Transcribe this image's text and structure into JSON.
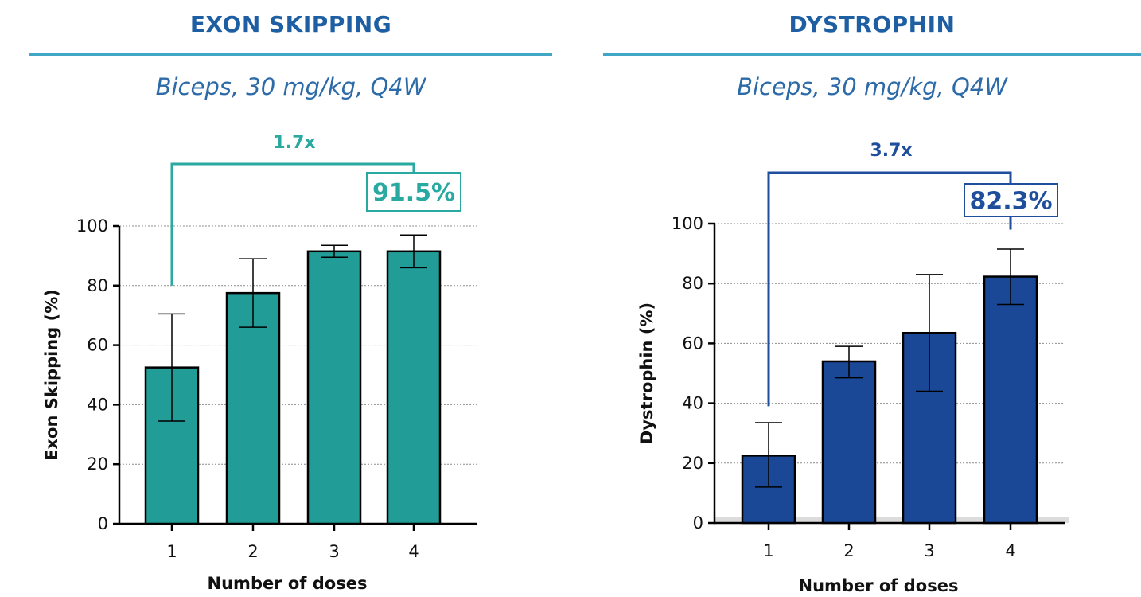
{
  "chart_data": [
    {
      "type": "bar",
      "title": "EXON SKIPPING",
      "subtitle": "Biceps, 30 mg/kg, Q4W",
      "xlabel": "Number of doses",
      "ylabel": "Exon Skipping (%)",
      "categories": [
        "1",
        "2",
        "3",
        "4"
      ],
      "values": [
        52.5,
        77.5,
        91.5,
        91.5
      ],
      "error": [
        [
          34.5,
          70.5
        ],
        [
          66.0,
          89.0
        ],
        [
          89.5,
          93.5
        ],
        [
          86.0,
          97.0
        ]
      ],
      "ylim": [
        0,
        100
      ],
      "yticks": [
        0,
        20,
        40,
        60,
        80,
        100
      ],
      "grid": true,
      "fold_change_label": "1.7x",
      "highlight_label": "91.5%",
      "bar_color": "#219c96",
      "accent_color": "#2aa9a1",
      "title_color": "#1e5fa4"
    },
    {
      "type": "bar",
      "title": "DYSTROPHIN",
      "subtitle": "Biceps, 30 mg/kg, Q4W",
      "xlabel": "Number of doses",
      "ylabel": "Dystrophin (%)",
      "categories": [
        "1",
        "2",
        "3",
        "4"
      ],
      "values": [
        22.5,
        54.0,
        63.5,
        82.3
      ],
      "error": [
        [
          12.0,
          33.5
        ],
        [
          48.5,
          59.0
        ],
        [
          44.0,
          83.0
        ],
        [
          73.0,
          91.5
        ]
      ],
      "ylim": [
        0,
        100
      ],
      "yticks": [
        0,
        20,
        40,
        60,
        80,
        100
      ],
      "grid": true,
      "fold_change_label": "3.7x",
      "highlight_label": "82.3%",
      "bar_color": "#1a4896",
      "accent_color": "#1f4e9c",
      "title_color": "#1e5fa4"
    }
  ]
}
